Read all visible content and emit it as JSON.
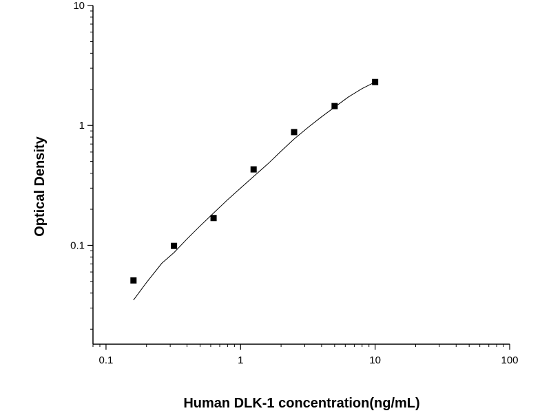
{
  "chart_data": {
    "type": "scatter",
    "title": "",
    "xlabel": "Human DLK-1 concentration(ng/mL)",
    "ylabel": "Optical Density",
    "xscale": "log",
    "yscale": "log",
    "xlim": [
      0.08,
      100
    ],
    "ylim": [
      0.015,
      10
    ],
    "x_ticks": [
      {
        "value": 0.1,
        "label": "0.1"
      },
      {
        "value": 1,
        "label": "1"
      },
      {
        "value": 10,
        "label": "10"
      },
      {
        "value": 100,
        "label": "100"
      }
    ],
    "y_ticks": [
      {
        "value": 0.1,
        "label": "0.1"
      },
      {
        "value": 1,
        "label": "1"
      },
      {
        "value": 10,
        "label": "10"
      }
    ],
    "grid": false,
    "legend": "none",
    "series": [
      {
        "kind": "points",
        "marker": "square",
        "color": "#000000",
        "x": [
          0.16,
          0.32,
          0.63,
          1.25,
          2.5,
          5,
          10
        ],
        "y": [
          0.051,
          0.099,
          0.169,
          0.43,
          0.88,
          1.45,
          2.3
        ]
      },
      {
        "kind": "fit-curve",
        "color": "#000000",
        "x": [
          0.16,
          0.2,
          0.26,
          0.32,
          0.4,
          0.5,
          0.63,
          0.8,
          1.0,
          1.25,
          1.6,
          2.0,
          2.5,
          3.2,
          4.0,
          5.0,
          6.3,
          8.0,
          10
        ],
        "y": [
          0.035,
          0.049,
          0.071,
          0.087,
          0.113,
          0.145,
          0.186,
          0.24,
          0.3,
          0.375,
          0.48,
          0.61,
          0.77,
          0.97,
          1.18,
          1.42,
          1.72,
          2.03,
          2.3
        ]
      }
    ]
  }
}
